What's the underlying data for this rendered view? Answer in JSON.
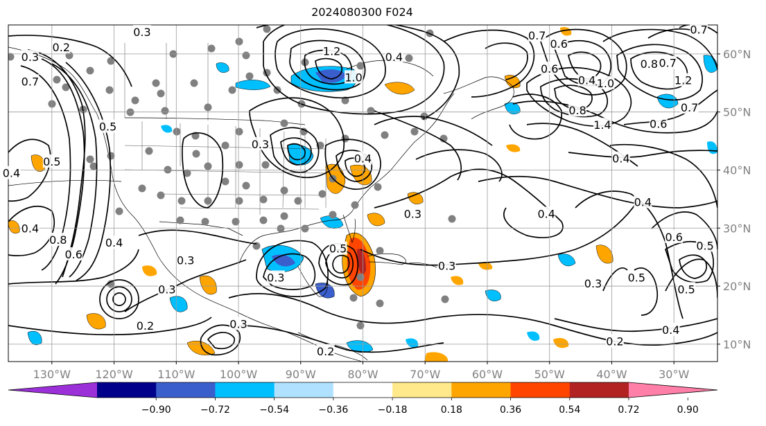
{
  "title": "2024080300 F024",
  "axes": {
    "lon_ticks": [
      "130°W",
      "120°W",
      "110°W",
      "100°W",
      "90°W",
      "80°W",
      "70°W",
      "60°W",
      "50°W",
      "40°W",
      "30°W"
    ],
    "lat_ticks": [
      "60°N",
      "50°N",
      "40°N",
      "30°N",
      "20°N",
      "10°N"
    ],
    "lon_range": [
      "-137",
      "-23"
    ],
    "lat_range": [
      "7",
      "65"
    ],
    "grid": true
  },
  "colorbar": {
    "ticks": [
      "−0.90",
      "−0.72",
      "−0.54",
      "−0.36",
      "−0.18",
      "0.18",
      "0.36",
      "0.54",
      "0.72",
      "0.90"
    ],
    "colors": [
      "#9b30d9",
      "#00008b",
      "#3a5fcd",
      "#00bfff",
      "#b0e2ff",
      "#ffffff",
      "#ffe98a",
      "#ffa500",
      "#ff4500",
      "#b22222",
      "#ff7fa8"
    ],
    "extend": "both"
  },
  "contour_labels": [
    {
      "text": "0.3",
      "lon": -115.5,
      "lat": 63.8
    },
    {
      "text": "0.2",
      "lon": -128.5,
      "lat": 61.2
    },
    {
      "text": "0.3",
      "lon": -133.5,
      "lat": 59.5
    },
    {
      "text": "0.7",
      "lon": -133.5,
      "lat": 55.3
    },
    {
      "text": "0.5",
      "lon": -121,
      "lat": 47.5
    },
    {
      "text": "0.4",
      "lon": -136.5,
      "lat": 39.5
    },
    {
      "text": "0.5",
      "lon": -130,
      "lat": 41.5
    },
    {
      "text": "0.4",
      "lon": -133.5,
      "lat": 30
    },
    {
      "text": "0.8",
      "lon": -129,
      "lat": 28
    },
    {
      "text": "0.6",
      "lon": -126.5,
      "lat": 25.5
    },
    {
      "text": "0.4",
      "lon": -120,
      "lat": 27.5
    },
    {
      "text": "0.3",
      "lon": -108.5,
      "lat": 24.5
    },
    {
      "text": "0.3",
      "lon": -111.5,
      "lat": 19.5
    },
    {
      "text": "0.2",
      "lon": -115,
      "lat": 13.2
    },
    {
      "text": "0.3",
      "lon": -100,
      "lat": 13.5
    },
    {
      "text": "0.2",
      "lon": -86,
      "lat": 8.8
    },
    {
      "text": "0.3",
      "lon": -96.5,
      "lat": 44.5
    },
    {
      "text": "0.3",
      "lon": -94,
      "lat": 21.5
    },
    {
      "text": "0.5",
      "lon": -84,
      "lat": 26.5
    },
    {
      "text": "0.3",
      "lon": -72,
      "lat": 32.5
    },
    {
      "text": "0.3",
      "lon": -66.5,
      "lat": 23.5
    },
    {
      "text": "0.4",
      "lon": -50.5,
      "lat": 32.5
    },
    {
      "text": "0.4",
      "lon": -80,
      "lat": 42
    },
    {
      "text": "1.2",
      "lon": -85,
      "lat": 60.5
    },
    {
      "text": "1.0",
      "lon": -81.5,
      "lat": 56
    },
    {
      "text": "0.4",
      "lon": -75,
      "lat": 59.5
    },
    {
      "text": "0.7",
      "lon": -52,
      "lat": 63.2
    },
    {
      "text": "0.6",
      "lon": -48.5,
      "lat": 61.8
    },
    {
      "text": "0.6",
      "lon": -50,
      "lat": 57.5
    },
    {
      "text": "0.4",
      "lon": -44,
      "lat": 55.5
    },
    {
      "text": "1.0",
      "lon": -41,
      "lat": 55
    },
    {
      "text": "0.8",
      "lon": -45.5,
      "lat": 50.3
    },
    {
      "text": "1.4",
      "lon": -41.5,
      "lat": 47.8
    },
    {
      "text": "0.8",
      "lon": -34,
      "lat": 58.3
    },
    {
      "text": "0.7",
      "lon": -31,
      "lat": 58.5
    },
    {
      "text": "1.2",
      "lon": -28.5,
      "lat": 55.5
    },
    {
      "text": "0.7",
      "lon": -27.5,
      "lat": 50.8
    },
    {
      "text": "0.6",
      "lon": -32.5,
      "lat": 48
    },
    {
      "text": "0.7",
      "lon": -26,
      "lat": 64.2
    },
    {
      "text": "0.4",
      "lon": -38.5,
      "lat": 42
    },
    {
      "text": "0.4",
      "lon": -35,
      "lat": 34.5
    },
    {
      "text": "0.6",
      "lon": -30,
      "lat": 28.5
    },
    {
      "text": "0.5",
      "lon": -25,
      "lat": 27
    },
    {
      "text": "0.5",
      "lon": -36,
      "lat": 21.5
    },
    {
      "text": "0.5",
      "lon": -28,
      "lat": 19.5
    },
    {
      "text": "0.3",
      "lon": -43,
      "lat": 20.5
    },
    {
      "text": "0.4",
      "lon": -30.5,
      "lat": 12.5
    },
    {
      "text": "0.2",
      "lon": -39.5,
      "lat": 10.5
    }
  ]
}
